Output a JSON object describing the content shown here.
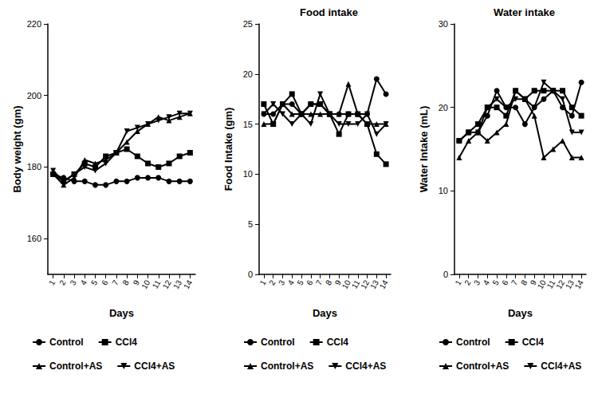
{
  "chart_data": [
    {
      "type": "line",
      "x_label": "Days",
      "y_label": "Body weight (gm)",
      "categories": [
        1,
        2,
        3,
        4,
        5,
        6,
        7,
        8,
        9,
        10,
        11,
        12,
        13,
        14
      ],
      "ylim": [
        150,
        220
      ],
      "yticks": [
        160,
        180,
        200,
        220
      ],
      "grid": false,
      "legend": "bottom",
      "series": [
        {
          "name": "Control",
          "color": "#000000",
          "marker": "circle",
          "values": [
            178,
            177,
            176,
            176,
            175,
            175,
            176,
            176,
            177,
            177,
            177,
            176,
            176,
            176
          ]
        },
        {
          "name": "CCl4",
          "color": "#000000",
          "marker": "rect",
          "values": [
            178,
            176,
            178,
            181,
            180,
            183,
            184,
            185,
            183,
            181,
            180,
            181,
            183,
            184
          ]
        },
        {
          "name": "Control+AS",
          "color": "#000000",
          "marker": "triangle",
          "values": [
            178,
            175,
            177,
            182,
            181,
            182,
            184,
            187,
            190,
            192,
            194,
            193,
            194,
            195
          ]
        },
        {
          "name": "CCl4+AS",
          "color": "#000000",
          "marker": "triangle_down",
          "values": [
            179,
            176,
            178,
            180,
            179,
            181,
            184,
            190,
            191,
            192,
            193,
            194,
            195,
            195
          ]
        }
      ]
    },
    {
      "type": "line",
      "title": "Food intake",
      "x_label": "Days",
      "y_label": "Food Intake (gm)",
      "categories": [
        1,
        2,
        3,
        4,
        5,
        6,
        7,
        8,
        9,
        10,
        11,
        12,
        13,
        14
      ],
      "ylim": [
        0,
        25
      ],
      "yticks": [
        0,
        5,
        10,
        15,
        20,
        25
      ],
      "grid": false,
      "legend": "bottom",
      "series": [
        {
          "name": "Control",
          "color": "#000000",
          "marker": "circle",
          "values": [
            16,
            16,
            17,
            17,
            16,
            17,
            17,
            16,
            16,
            16,
            16,
            16,
            19.5,
            18
          ]
        },
        {
          "name": "CCl4",
          "color": "#000000",
          "marker": "rect",
          "values": [
            17,
            15,
            17,
            18,
            16,
            17,
            17,
            16,
            14,
            16,
            16,
            15,
            12,
            11
          ]
        },
        {
          "name": "Control+AS",
          "color": "#000000",
          "marker": "triangle",
          "values": [
            15,
            15,
            17,
            16,
            16,
            16,
            16,
            16,
            16,
            19,
            16,
            15,
            15,
            15
          ]
        },
        {
          "name": "CCl4+AS",
          "color": "#000000",
          "marker": "triangle_down",
          "values": [
            16,
            17,
            16,
            15,
            16,
            15,
            18,
            16,
            15,
            15,
            15,
            16,
            14,
            15
          ]
        }
      ]
    },
    {
      "type": "line",
      "title": "Water intake",
      "x_label": "Days",
      "y_label": "Water Intake (mL)",
      "categories": [
        1,
        2,
        3,
        4,
        5,
        6,
        7,
        8,
        9,
        10,
        11,
        12,
        13,
        14
      ],
      "ylim": [
        0,
        30
      ],
      "yticks": [
        0,
        10,
        20,
        30
      ],
      "grid": false,
      "legend": "bottom",
      "series": [
        {
          "name": "Control",
          "color": "#000000",
          "marker": "circle",
          "values": [
            16,
            17,
            17,
            19,
            22,
            20,
            20,
            18,
            20,
            21,
            22,
            20,
            19,
            23
          ]
        },
        {
          "name": "CCl4",
          "color": "#000000",
          "marker": "rect",
          "values": [
            16,
            17,
            18,
            20,
            20,
            19,
            22,
            21,
            22,
            22,
            22,
            22,
            20,
            19
          ]
        },
        {
          "name": "Control+AS",
          "color": "#000000",
          "marker": "triangle",
          "values": [
            14,
            16,
            17,
            16,
            17,
            18,
            22,
            21,
            19,
            14,
            15,
            16,
            14,
            14
          ]
        },
        {
          "name": "CCl4+AS",
          "color": "#000000",
          "marker": "triangle_down",
          "values": [
            16,
            17,
            17,
            20,
            21,
            20,
            21,
            21,
            20,
            23,
            22,
            21,
            17,
            17
          ]
        }
      ]
    }
  ]
}
